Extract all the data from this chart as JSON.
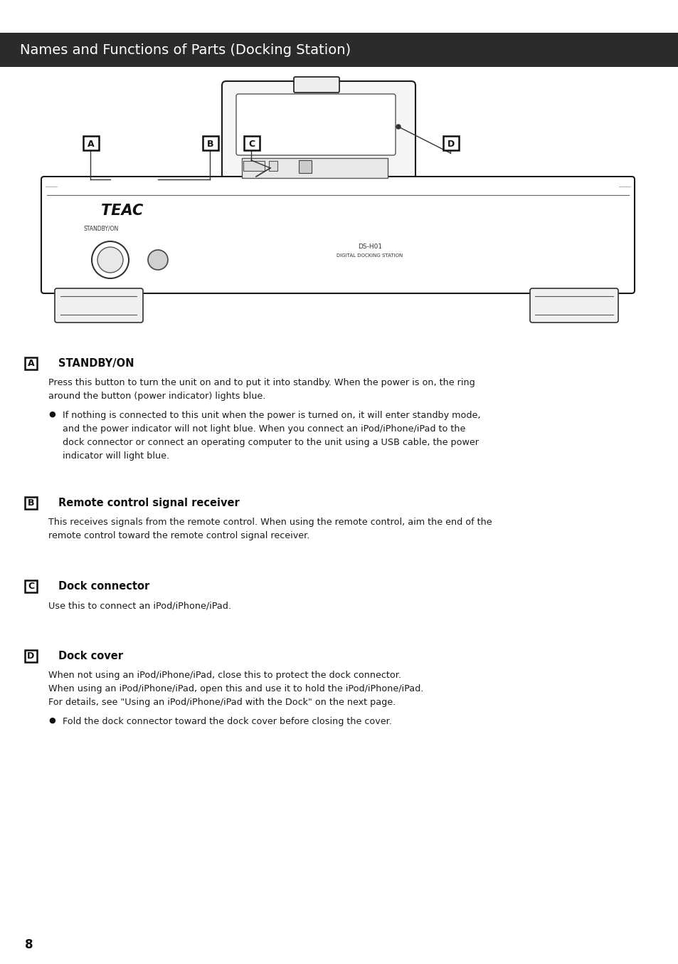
{
  "title": "Names and Functions of Parts (Docking Station)",
  "title_bg": "#2b2b2b",
  "title_color": "#ffffff",
  "title_fontsize": 14,
  "bg_color": "#ffffff",
  "text_color": "#1a1a1a",
  "page_number": "8",
  "sections": [
    {
      "label": "A",
      "heading": "STANDBY/ON",
      "body": "Press this button to turn the unit on and to put it into standby. When the power is on, the ring\naround the button (power indicator) lights blue.",
      "bullet": "If nothing is connected to this unit when the power is turned on, it will enter standby mode,\nand the power indicator will not light blue. When you connect an iPod/iPhone/iPad to the\ndock connector or connect an operating computer to the unit using a USB cable, the power\nindicator will light blue."
    },
    {
      "label": "B",
      "heading": "Remote control signal receiver",
      "body": "This receives signals from the remote control. When using the remote control, aim the end of the\nremote control toward the remote control signal receiver.",
      "bullet": null
    },
    {
      "label": "C",
      "heading": "Dock connector",
      "body": "Use this to connect an iPod/iPhone/iPad.",
      "bullet": null
    },
    {
      "label": "D",
      "heading": "Dock cover",
      "body": "When not using an iPod/iPhone/iPad, close this to protect the dock connector.\nWhen using an iPod/iPhone/iPad, open this and use it to hold the iPod/iPhone/iPad.\nFor details, see \"Using an iPod/iPhone/iPad with the Dock\" on the next page.",
      "bullet": "Fold the dock connector toward the dock cover before closing the cover."
    }
  ]
}
